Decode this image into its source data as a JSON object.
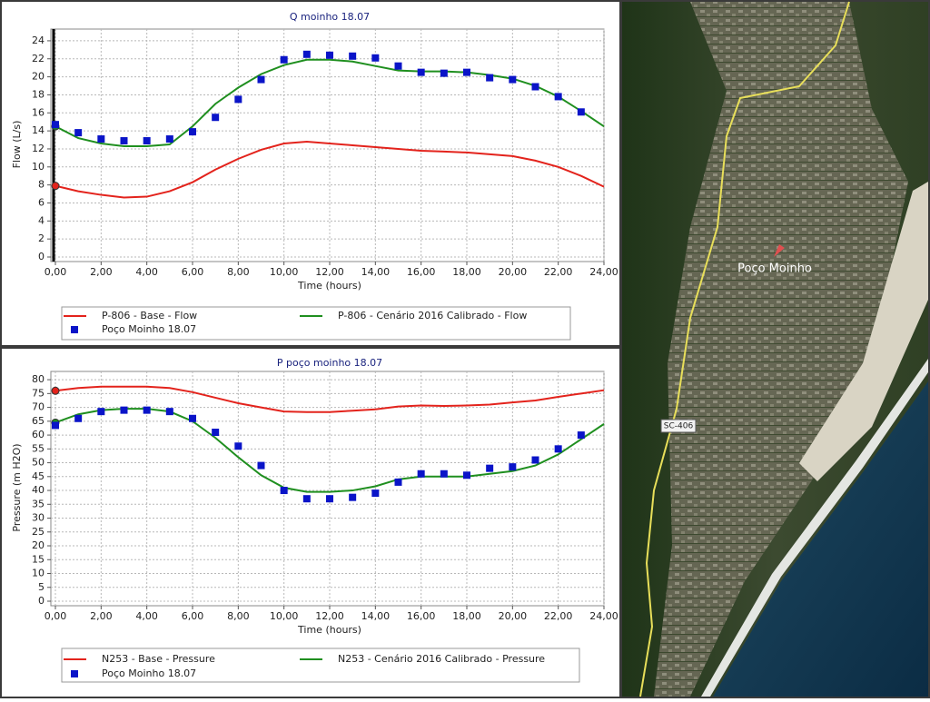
{
  "chart_data": [
    {
      "type": "line",
      "title": "Q moinho 18.07",
      "x_label": "Time (hours)",
      "y_label": "Flow (L/s)",
      "x": [
        0,
        1,
        2,
        3,
        4,
        5,
        6,
        7,
        8,
        9,
        10,
        11,
        12,
        13,
        14,
        15,
        16,
        17,
        18,
        19,
        20,
        21,
        22,
        23,
        24
      ],
      "xlim": [
        0,
        24
      ],
      "xticks": [
        {
          "value": 0,
          "label": "0,00"
        },
        {
          "value": 2,
          "label": "2,00"
        },
        {
          "value": 4,
          "label": "4,00"
        },
        {
          "value": 6,
          "label": "6,00"
        },
        {
          "value": 8,
          "label": "8,00"
        },
        {
          "value": 10,
          "label": "10,00"
        },
        {
          "value": 12,
          "label": "12,00"
        },
        {
          "value": 14,
          "label": "14,00"
        },
        {
          "value": 16,
          "label": "16,00"
        },
        {
          "value": 18,
          "label": "18,00"
        },
        {
          "value": 20,
          "label": "20,00"
        },
        {
          "value": 22,
          "label": "22,00"
        },
        {
          "value": 24,
          "label": "24,00"
        }
      ],
      "ylim": [
        0,
        25
      ],
      "yticks": [
        0,
        2,
        4,
        6,
        8,
        10,
        12,
        14,
        16,
        18,
        20,
        22,
        24
      ],
      "grid": true,
      "series": [
        {
          "name": "P-806 - Base - Flow",
          "color": "#e3231c",
          "style": "line",
          "values": [
            7.9,
            7.3,
            6.9,
            6.6,
            6.7,
            7.3,
            8.3,
            9.7,
            10.9,
            11.9,
            12.6,
            12.8,
            12.6,
            12.4,
            12.2,
            12.0,
            11.8,
            11.7,
            11.6,
            11.4,
            11.2,
            10.7,
            10.0,
            9.0,
            7.8
          ]
        },
        {
          "name": "P-806 - Cenário 2016 Calibrado - Flow",
          "color": "#1f8f1f",
          "style": "line",
          "values": [
            14.5,
            13.2,
            12.6,
            12.3,
            12.3,
            12.5,
            14.5,
            17.0,
            18.8,
            20.3,
            21.3,
            21.9,
            21.9,
            21.7,
            21.2,
            20.7,
            20.6,
            20.6,
            20.5,
            20.2,
            19.8,
            19.0,
            17.8,
            16.2,
            14.5
          ]
        },
        {
          "name": "Poço Moinho 18.07",
          "color": "#0a14c8",
          "style": "markers",
          "values": [
            14.7,
            13.8,
            13.1,
            12.9,
            12.9,
            13.1,
            13.9,
            15.5,
            17.5,
            19.7,
            21.9,
            22.5,
            22.4,
            22.3,
            22.1,
            21.2,
            20.5,
            20.4,
            20.5,
            19.9,
            19.7,
            18.9,
            17.8,
            16.1,
            null
          ]
        }
      ]
    },
    {
      "type": "line",
      "title": "P poço moinho 18.07",
      "x_label": "Time (hours)",
      "y_label": "Pressure (m H2O)",
      "x": [
        0,
        1,
        2,
        3,
        4,
        5,
        6,
        7,
        8,
        9,
        10,
        11,
        12,
        13,
        14,
        15,
        16,
        17,
        18,
        19,
        20,
        21,
        22,
        23,
        24
      ],
      "xlim": [
        0,
        24
      ],
      "xticks": [
        {
          "value": 0,
          "label": "0,00"
        },
        {
          "value": 2,
          "label": "2,00"
        },
        {
          "value": 4,
          "label": "4,00"
        },
        {
          "value": 6,
          "label": "6,00"
        },
        {
          "value": 8,
          "label": "8,00"
        },
        {
          "value": 10,
          "label": "10,00"
        },
        {
          "value": 12,
          "label": "12,00"
        },
        {
          "value": 14,
          "label": "14,00"
        },
        {
          "value": 16,
          "label": "16,00"
        },
        {
          "value": 18,
          "label": "18,00"
        },
        {
          "value": 20,
          "label": "20,00"
        },
        {
          "value": 22,
          "label": "22,00"
        },
        {
          "value": 24,
          "label": "24,00"
        }
      ],
      "ylim": [
        0,
        82
      ],
      "yticks": [
        0,
        5,
        10,
        15,
        20,
        25,
        30,
        35,
        40,
        45,
        50,
        55,
        60,
        65,
        70,
        75,
        80
      ],
      "grid": true,
      "series": [
        {
          "name": "N253 - Base - Pressure",
          "color": "#e3231c",
          "style": "line",
          "values": [
            76.0,
            77.0,
            77.5,
            77.5,
            77.5,
            77.0,
            75.5,
            73.5,
            71.5,
            70.0,
            68.5,
            68.3,
            68.3,
            68.8,
            69.3,
            70.3,
            70.7,
            70.5,
            70.7,
            71.0,
            71.8,
            72.5,
            73.8,
            75.0,
            76.2
          ]
        },
        {
          "name": "N253 - Cenário 2016 Calibrado - Pressure",
          "color": "#1f8f1f",
          "style": "line",
          "values": [
            64.5,
            67.5,
            69.0,
            69.5,
            69.5,
            68.5,
            65.0,
            59.0,
            52.0,
            45.5,
            41.0,
            39.5,
            39.5,
            40.0,
            41.5,
            44.0,
            45.0,
            45.0,
            45.0,
            46.0,
            47.0,
            49.0,
            53.0,
            58.5,
            64.0
          ]
        },
        {
          "name": "Poço Moinho 18.07",
          "color": "#0a14c8",
          "style": "markers",
          "values": [
            63.5,
            66.0,
            68.5,
            69.0,
            69.0,
            68.5,
            66.0,
            61.0,
            56.0,
            49.0,
            40.0,
            37.0,
            37.0,
            37.5,
            39.0,
            43.0,
            46.0,
            46.0,
            45.5,
            48.0,
            48.5,
            51.0,
            55.0,
            60.0,
            null
          ]
        }
      ]
    }
  ],
  "map": {
    "labels": [
      "Poço Moinho",
      "SC-406"
    ]
  }
}
